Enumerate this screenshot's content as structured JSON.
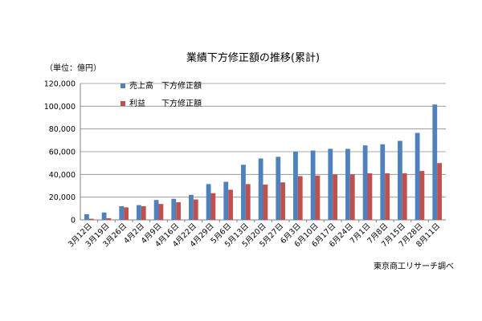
{
  "chart_data": {
    "type": "bar",
    "title": "業績下方修正額の推移(累計)",
    "unit_label": "（単位：億円）",
    "source_note": "東京商工リサーチ調べ",
    "categories": [
      "3月12日",
      "3月19日",
      "3月26日",
      "4月2日",
      "4月9日",
      "4月16日",
      "4月22日",
      "4月29日",
      "5月6日",
      "5月13日",
      "5月20日",
      "5月27日",
      "6月3日",
      "6月10日",
      "6月17日",
      "6月24日",
      "7月1日",
      "7月8日",
      "7月15日",
      "7月28日",
      "8月11日"
    ],
    "series": [
      {
        "name": "売上高　下方修正額",
        "color": "#4f81bd",
        "values": [
          5000,
          6500,
          12000,
          13000,
          17500,
          18500,
          22000,
          31500,
          33500,
          48500,
          54000,
          55500,
          60000,
          61000,
          62500,
          62500,
          65500,
          66500,
          69500,
          76500,
          101500
        ]
      },
      {
        "name": "利益　　下方修正額",
        "color": "#c0504d",
        "values": [
          1000,
          1500,
          11000,
          12000,
          14000,
          15500,
          18000,
          23500,
          26500,
          31500,
          31000,
          33000,
          38500,
          39000,
          40000,
          40000,
          41000,
          41000,
          41000,
          43000,
          50000
        ]
      }
    ],
    "y_ticks": [
      "0",
      "20,000",
      "40,000",
      "60,000",
      "80,000",
      "100,000",
      "120,000"
    ],
    "ylim": [
      0,
      120000
    ],
    "grid": true,
    "legend_position": "top-left"
  }
}
